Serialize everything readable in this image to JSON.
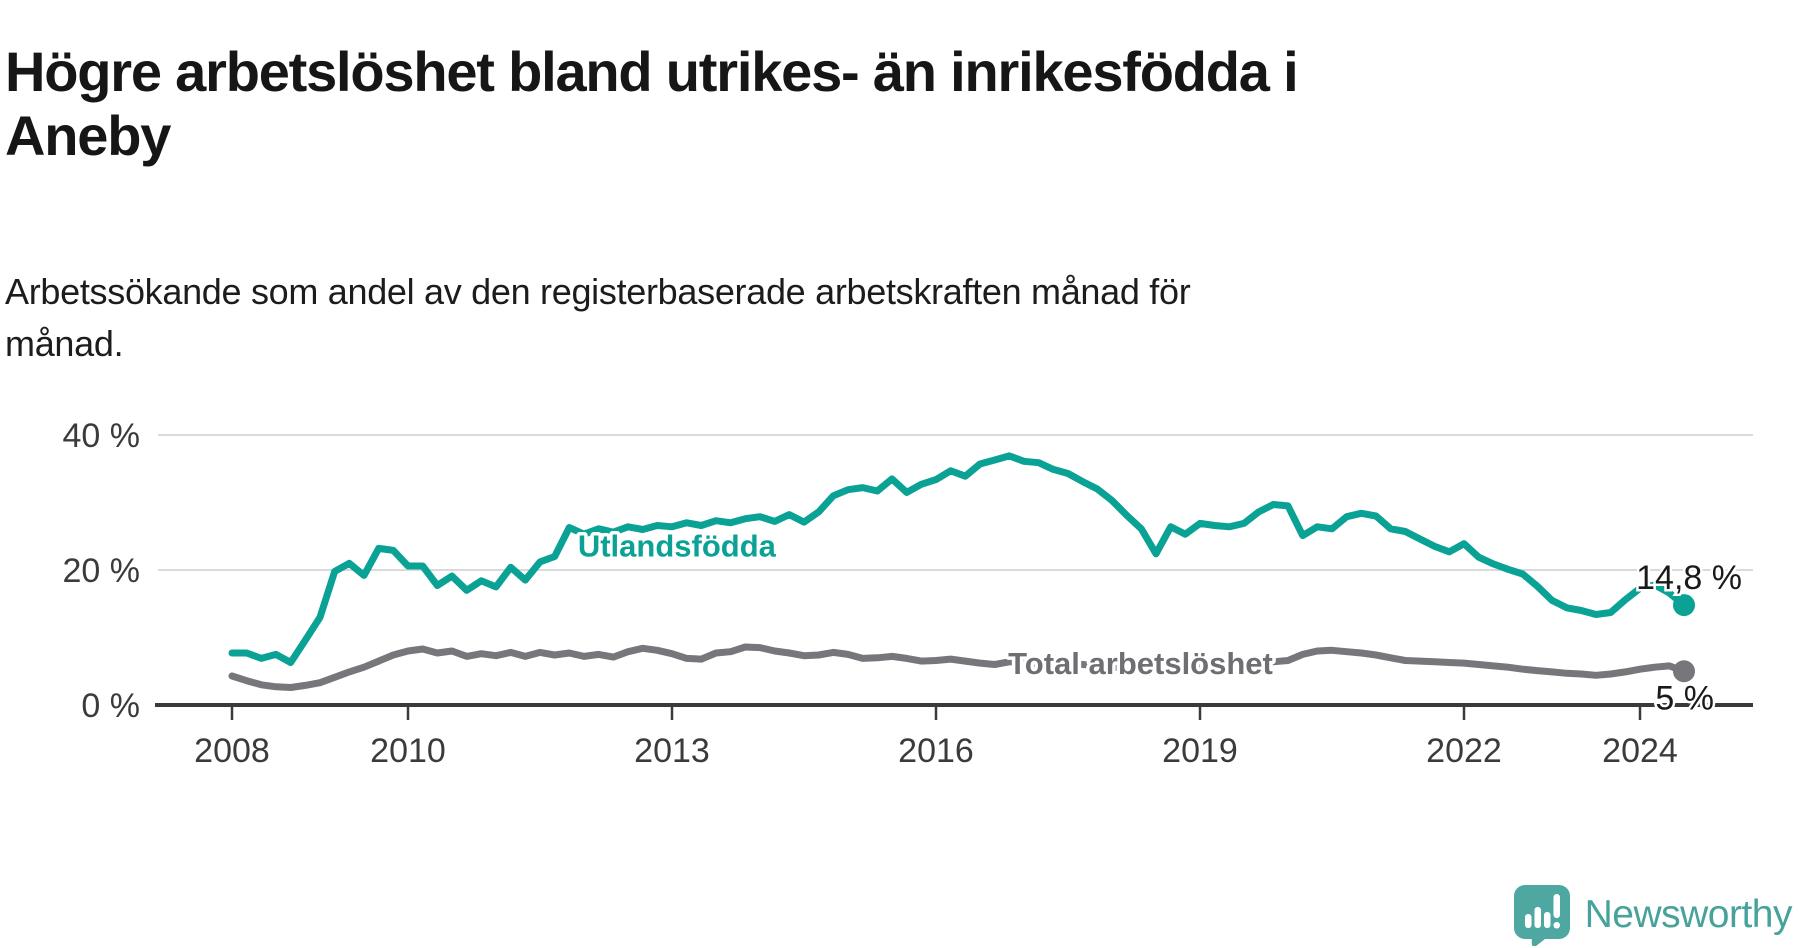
{
  "logo": {
    "text": "Newsworthy",
    "icon": "newsworthy-speech-bubble-bar-chart",
    "color": "#47a29b",
    "icon_color": "#4fa7a2"
  },
  "colors": {
    "accent_teal": "#0aa295",
    "neutral_gray": "#77777b",
    "axis_text": "#3b3b3b",
    "gridline": "#dadada",
    "baseline": "#3a3a3a",
    "end_label_text": "#1a1a1a",
    "background": "#ffffff"
  },
  "chart_data": {
    "type": "line",
    "title": "Högre arbetslöshet bland utrikes- än inrikesfödda i Aneby",
    "subtitle": "Arbetssökande som andel av den registerbaserade arbetskraften månad för månad.",
    "unit": "%",
    "grid": true,
    "legend_position": "inline-labels",
    "x_axis": {
      "ticks": [
        2008,
        2010,
        2013,
        2016,
        2019,
        2022,
        2024
      ],
      "tick_labels": [
        "2008",
        "2010",
        "2013",
        "2016",
        "2019",
        "2022",
        "2024"
      ],
      "range_years": [
        2007.9,
        2025.3
      ]
    },
    "y_axis": {
      "ticks": [
        0,
        20,
        40
      ],
      "tick_labels": [
        "0 %",
        "20 %",
        "40 %"
      ],
      "ylim": [
        0,
        42
      ]
    },
    "x_start": 2008.0,
    "x_interval_years": 0.1666667,
    "series": [
      {
        "name": "Utlandsfödda",
        "color": "#0aa295",
        "inline_label": {
          "text": "Utlandsfödda",
          "at_year": 2011.93,
          "at_value": 23.6
        },
        "end_label": "14,8 %",
        "end_value": 14.8,
        "values": [
          7.7,
          7.7,
          6.9,
          7.5,
          6.3,
          9.6,
          13.0,
          19.8,
          21.0,
          19.2,
          23.2,
          22.9,
          20.6,
          20.6,
          17.7,
          19.1,
          17.0,
          18.4,
          17.5,
          20.4,
          18.5,
          21.2,
          22.0,
          26.3,
          25.3,
          26.1,
          25.6,
          26.4,
          26.0,
          26.6,
          26.4,
          27.0,
          26.6,
          27.3,
          27.0,
          27.6,
          27.9,
          27.2,
          28.2,
          27.1,
          28.6,
          31.0,
          31.9,
          32.2,
          31.7,
          33.5,
          31.5,
          32.7,
          33.4,
          34.7,
          33.9,
          35.7,
          36.3,
          36.9,
          36.1,
          35.9,
          34.9,
          34.3,
          33.1,
          32.0,
          30.3,
          28.1,
          26.1,
          22.4,
          26.4,
          25.3,
          26.9,
          26.6,
          26.4,
          26.9,
          28.6,
          29.7,
          29.5,
          25.1,
          26.4,
          26.1,
          27.9,
          28.4,
          28.0,
          26.1,
          25.7,
          24.6,
          23.5,
          22.7,
          23.9,
          21.9,
          20.9,
          20.1,
          19.4,
          17.6,
          15.5,
          14.4,
          14.0,
          13.4,
          13.7,
          15.6,
          17.3,
          17.8,
          16.6,
          14.8
        ]
      },
      {
        "name": "Total arbetslöshet",
        "color": "#77777b",
        "inline_label": {
          "text": "Total arbetslöshet",
          "at_year": 2016.82,
          "at_value": 6.2
        },
        "end_label": "5 %",
        "end_value": 5.0,
        "values": [
          4.3,
          3.6,
          3.0,
          2.7,
          2.6,
          2.9,
          3.3,
          4.1,
          4.9,
          5.6,
          6.5,
          7.4,
          8.0,
          8.3,
          7.7,
          8.0,
          7.2,
          7.6,
          7.3,
          7.8,
          7.2,
          7.8,
          7.4,
          7.7,
          7.2,
          7.5,
          7.1,
          7.9,
          8.4,
          8.1,
          7.6,
          6.9,
          6.8,
          7.7,
          7.9,
          8.6,
          8.5,
          8.0,
          7.7,
          7.3,
          7.4,
          7.8,
          7.5,
          6.9,
          7.0,
          7.2,
          6.9,
          6.5,
          6.6,
          6.8,
          6.5,
          6.2,
          6.0,
          6.4,
          6.3,
          6.1,
          6.0,
          6.2,
          6.0,
          5.8,
          5.6,
          5.5,
          5.4,
          5.6,
          5.5,
          5.7,
          5.8,
          5.9,
          6.0,
          6.2,
          6.3,
          6.4,
          6.6,
          7.5,
          8.0,
          8.1,
          7.9,
          7.7,
          7.4,
          7.0,
          6.6,
          6.5,
          6.4,
          6.3,
          6.2,
          6.0,
          5.8,
          5.6,
          5.3,
          5.1,
          4.9,
          4.7,
          4.6,
          4.4,
          4.6,
          4.9,
          5.3,
          5.6,
          5.8,
          5.0
        ]
      }
    ]
  }
}
